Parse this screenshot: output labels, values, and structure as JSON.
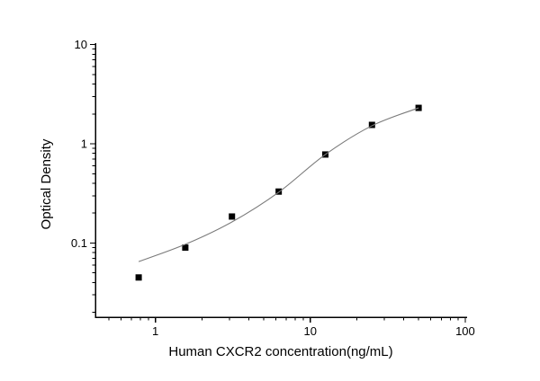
{
  "figure": {
    "background": "#ffffff",
    "axes_color": "#000000",
    "tick_label_color": "#000000"
  },
  "chart_data": {
    "type": "scatter",
    "title": "",
    "xlabel": "Human CXCR2 concentration(ng/mL)",
    "ylabel": "Optical Density",
    "xscale": "log",
    "yscale": "log",
    "grid": false,
    "legend": "none",
    "xlim": [
      0.41,
      102.8
    ],
    "ylim": [
      0.0179,
      10.33
    ],
    "x_major_ticks": {
      "values": [
        1,
        10,
        100
      ],
      "labels": [
        "1",
        "10",
        "100"
      ]
    },
    "y_major_ticks": {
      "values": [
        0.1,
        1,
        10
      ],
      "labels": [
        "0.1",
        "1",
        "10"
      ]
    },
    "x_minor_ticks": [
      0.5,
      0.6,
      0.7,
      0.8,
      0.9,
      2,
      3,
      4,
      5,
      6,
      7,
      8,
      9,
      20,
      30,
      40,
      50,
      60,
      70,
      80,
      90
    ],
    "y_minor_ticks": [
      0.02,
      0.03,
      0.04,
      0.05,
      0.06,
      0.07,
      0.08,
      0.09,
      0.2,
      0.3,
      0.4,
      0.5,
      0.6,
      0.7,
      0.8,
      0.9,
      2,
      3,
      4,
      5,
      6,
      7,
      8,
      9
    ],
    "series": [
      {
        "name": "standard-points",
        "type": "scatter",
        "marker": "square",
        "marker_color": "#000000",
        "marker_size": 7,
        "x": [
          0.78,
          1.56,
          3.12,
          6.25,
          12.5,
          25,
          50
        ],
        "y": [
          0.045,
          0.09,
          0.185,
          0.33,
          0.78,
          1.55,
          2.3
        ]
      },
      {
        "name": "fit-curve",
        "type": "line",
        "color": "#7a7a7a",
        "width": 1.1,
        "x": [
          0.78,
          1.56,
          3.12,
          6.25,
          12.5,
          25,
          50
        ],
        "y": [
          0.065,
          0.097,
          0.163,
          0.325,
          0.78,
          1.52,
          2.3
        ]
      }
    ]
  }
}
